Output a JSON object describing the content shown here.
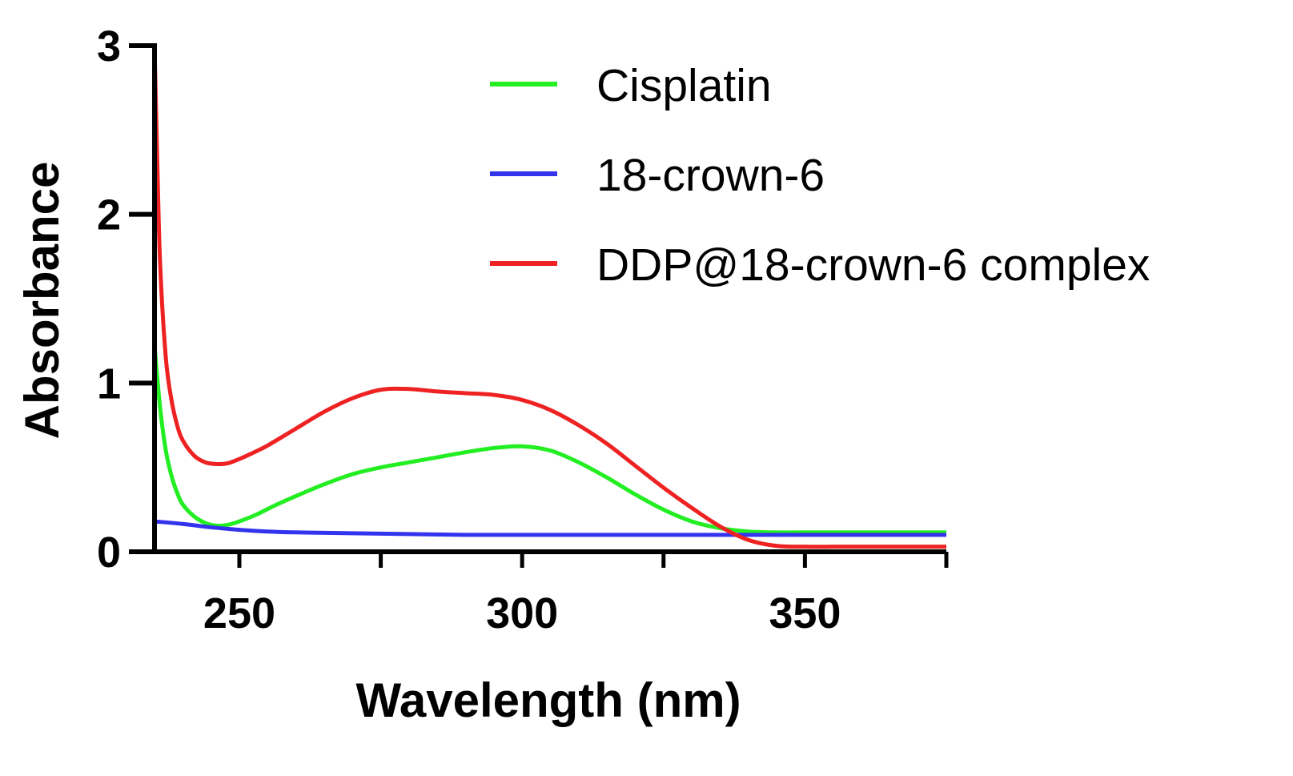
{
  "chart_data": {
    "type": "line",
    "title": "",
    "xlabel": "Wavelength (nm)",
    "ylabel": "Absorbance",
    "xlim": [
      235,
      375
    ],
    "ylim": [
      0,
      3
    ],
    "x_major_ticks": [
      250,
      300,
      350
    ],
    "x_minor_ticks": [
      275,
      325,
      375
    ],
    "x_tick_labels": [
      "250",
      "300",
      "350"
    ],
    "y_ticks": [
      0,
      1,
      2,
      3
    ],
    "y_tick_labels": [
      "0",
      "1",
      "2",
      "3"
    ],
    "grid": false,
    "legend_position": "top-right",
    "series": [
      {
        "name": "Cisplatin",
        "color": "#22ee22",
        "x": [
          235,
          236,
          237,
          238,
          239,
          240,
          242,
          244,
          246,
          248,
          250,
          253,
          256,
          260,
          265,
          270,
          275,
          280,
          285,
          290,
          295,
          300,
          305,
          310,
          315,
          320,
          325,
          330,
          335,
          340,
          345,
          350,
          355,
          360,
          365,
          370,
          375
        ],
        "y": [
          1.22,
          0.85,
          0.6,
          0.45,
          0.35,
          0.28,
          0.21,
          0.17,
          0.155,
          0.16,
          0.18,
          0.22,
          0.27,
          0.33,
          0.4,
          0.46,
          0.5,
          0.53,
          0.56,
          0.59,
          0.615,
          0.625,
          0.6,
          0.53,
          0.44,
          0.34,
          0.25,
          0.18,
          0.14,
          0.12,
          0.115,
          0.115,
          0.115,
          0.115,
          0.115,
          0.115,
          0.115
        ]
      },
      {
        "name": "18-crown-6",
        "color": "#3333ee",
        "x": [
          235,
          240,
          245,
          250,
          255,
          260,
          270,
          280,
          290,
          300,
          310,
          320,
          330,
          340,
          350,
          360,
          370,
          375
        ],
        "y": [
          0.18,
          0.165,
          0.145,
          0.13,
          0.12,
          0.115,
          0.11,
          0.105,
          0.1,
          0.1,
          0.1,
          0.1,
          0.1,
          0.1,
          0.1,
          0.1,
          0.1,
          0.1
        ]
      },
      {
        "name": "DDP@18-crown-6 complex",
        "color": "#ee2222",
        "x": [
          235,
          235.5,
          236,
          237,
          238,
          239,
          240,
          242,
          244,
          246,
          248,
          250,
          252,
          255,
          260,
          265,
          270,
          275,
          280,
          285,
          290,
          295,
          300,
          305,
          310,
          315,
          320,
          325,
          330,
          335,
          340,
          345,
          350,
          355,
          360,
          365,
          370,
          375
        ],
        "y": [
          3.0,
          2.3,
          1.7,
          1.15,
          0.9,
          0.75,
          0.66,
          0.57,
          0.53,
          0.52,
          0.525,
          0.55,
          0.58,
          0.63,
          0.73,
          0.83,
          0.91,
          0.96,
          0.965,
          0.95,
          0.94,
          0.93,
          0.9,
          0.84,
          0.75,
          0.64,
          0.51,
          0.38,
          0.26,
          0.15,
          0.07,
          0.035,
          0.03,
          0.03,
          0.03,
          0.03,
          0.03,
          0.03
        ]
      }
    ]
  }
}
